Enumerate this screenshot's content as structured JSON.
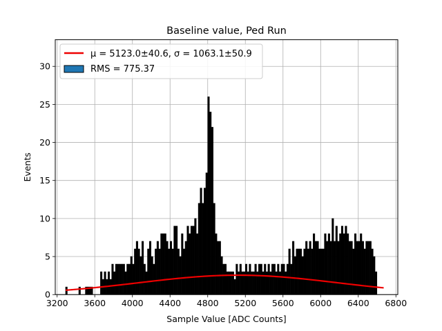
{
  "chart_data": {
    "type": "bar",
    "title": "Baseline value, Ped Run",
    "xlabel": "Sample Value [ADC Counts]",
    "ylabel": "Events",
    "xlim": [
      3180,
      6820
    ],
    "ylim": [
      0,
      33.5
    ],
    "xticks": [
      3200,
      3600,
      4000,
      4400,
      4800,
      5200,
      5600,
      6000,
      6400,
      6800
    ],
    "yticks": [
      0,
      5,
      10,
      15,
      20,
      25,
      30
    ],
    "grid": true,
    "legend_position": "top-left",
    "legend": {
      "fit_label": "μ = 5123.0±40.6, σ = 1063.1±50.9",
      "hist_label": "RMS = 775.37"
    },
    "colors": {
      "fit": "#ee0000",
      "hist_fill": "#1f77b4",
      "bar": "#000000",
      "grid": "#b0b0b0"
    },
    "series": [
      {
        "name": "RMS = 775.37",
        "type": "histogram",
        "bins": [
          3290,
          3430,
          3500,
          3520,
          3540,
          3560,
          3660,
          3680,
          3700,
          3720,
          3740,
          3760,
          3780,
          3800,
          3820,
          3840,
          3860,
          3880,
          3900,
          3920,
          3940,
          3960,
          3980,
          4000,
          4020,
          4040,
          4060,
          4080,
          4100,
          4120,
          4140,
          4160,
          4180,
          4200,
          4220,
          4240,
          4260,
          4280,
          4300,
          4320,
          4340,
          4360,
          4380,
          4400,
          4420,
          4440,
          4460,
          4480,
          4500,
          4520,
          4540,
          4560,
          4580,
          4600,
          4620,
          4640,
          4660,
          4680,
          4700,
          4720,
          4740,
          4760,
          4780,
          4800,
          4820,
          4840,
          4860,
          4880,
          4900,
          4920,
          4940,
          4960,
          4980,
          5000,
          5020,
          5040,
          5060,
          5080,
          5100,
          5120,
          5140,
          5160,
          5180,
          5200,
          5220,
          5240,
          5260,
          5280,
          5300,
          5320,
          5340,
          5360,
          5380,
          5400,
          5420,
          5440,
          5460,
          5480,
          5500,
          5520,
          5540,
          5560,
          5580,
          5600,
          5620,
          5640,
          5660,
          5680,
          5700,
          5720,
          5740,
          5760,
          5780,
          5800,
          5820,
          5840,
          5860,
          5880,
          5900,
          5920,
          5940,
          5960,
          5980,
          6000,
          6020,
          6040,
          6060,
          6080,
          6100,
          6120,
          6140,
          6160,
          6180,
          6200,
          6220,
          6240,
          6260,
          6280,
          6300,
          6320,
          6340,
          6360,
          6380,
          6400,
          6420,
          6440,
          6460,
          6480,
          6500,
          6520,
          6540,
          6560,
          6580,
          6600
        ],
        "values": [
          1,
          1,
          1,
          1,
          1,
          1,
          3,
          2,
          3,
          2,
          3,
          2,
          4,
          3,
          4,
          4,
          4,
          4,
          4,
          3,
          4,
          4,
          5,
          4,
          6,
          7,
          6,
          5,
          7,
          4,
          3,
          6,
          7,
          5,
          4,
          6,
          7,
          6,
          8,
          8,
          8,
          7,
          6,
          7,
          6,
          9,
          9,
          6,
          5,
          8,
          6,
          7,
          9,
          8,
          9,
          9,
          10,
          8,
          12,
          14,
          12,
          14,
          16,
          26,
          24,
          22,
          12,
          8,
          7,
          7,
          5,
          4,
          4,
          3,
          3,
          3,
          3,
          2,
          4,
          3,
          4,
          3,
          3,
          4,
          3,
          4,
          3,
          3,
          4,
          3,
          4,
          4,
          3,
          4,
          3,
          4,
          3,
          4,
          4,
          3,
          4,
          3,
          4,
          4,
          3,
          4,
          6,
          4,
          7,
          5,
          6,
          6,
          6,
          5,
          6,
          7,
          6,
          7,
          6,
          8,
          7,
          7,
          6,
          6,
          6,
          8,
          7,
          8,
          7,
          10,
          7,
          9,
          7,
          8,
          9,
          8,
          9,
          8,
          7,
          7,
          6,
          8,
          7,
          7,
          8,
          7,
          6,
          7,
          7,
          7,
          6,
          5,
          3
        ]
      },
      {
        "name": "μ = 5123.0±40.6, σ = 1063.1±50.9",
        "type": "gaussian_fit",
        "mu": 5123.0,
        "sigma": 1063.1,
        "amplitude": 2.55,
        "x_range": [
          3290,
          6670
        ]
      }
    ]
  }
}
